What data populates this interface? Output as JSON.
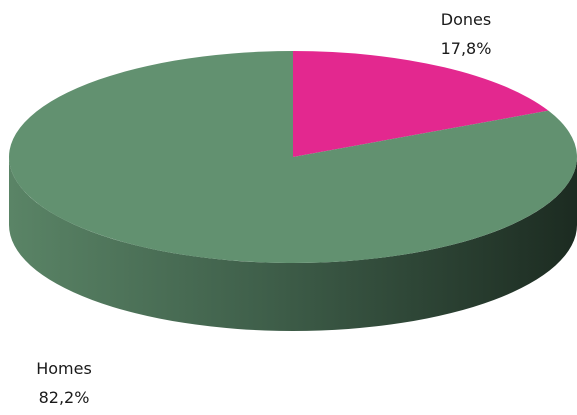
{
  "chart_data": {
    "type": "pie",
    "style": "3d",
    "title": "",
    "slices": [
      {
        "name": "Dones",
        "value": 17.8,
        "label": "17,8%",
        "color": "#e3288f"
      },
      {
        "name": "Homes",
        "value": 82.2,
        "label": "82,2%",
        "color": "#629170"
      }
    ]
  }
}
